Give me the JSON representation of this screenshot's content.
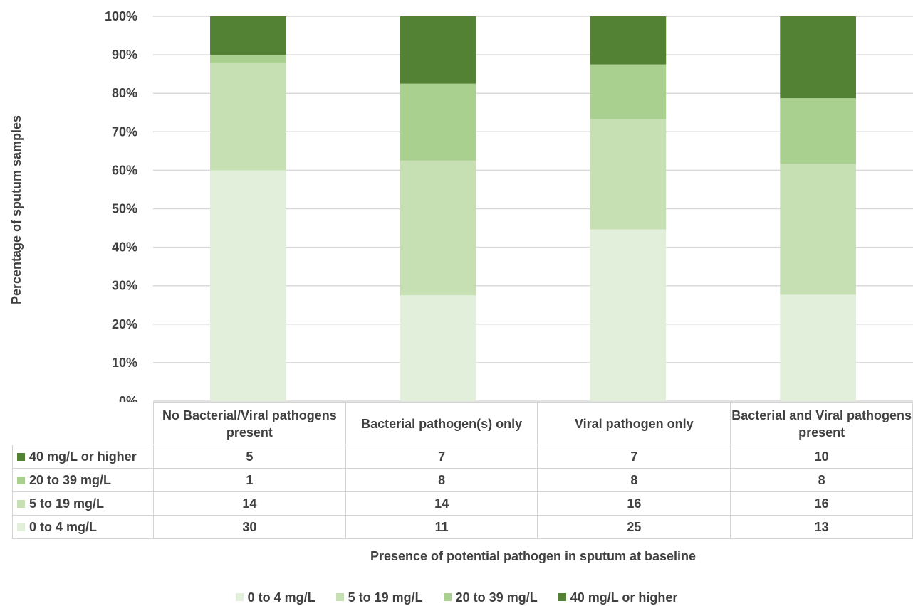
{
  "chart_data": {
    "type": "bar",
    "stacked": "percent",
    "ylabel": "Percentage of sputum samples",
    "xlabel": "Presence of potential pathogen in sputum at baseline",
    "ylim": [
      0,
      100
    ],
    "yticks": [
      "0%",
      "10%",
      "20%",
      "30%",
      "40%",
      "50%",
      "60%",
      "70%",
      "80%",
      "90%",
      "100%"
    ],
    "categories": [
      "No Bacterial/Viral pathogens present",
      "Bacterial pathogen(s) only",
      "Viral pathogen only",
      "Bacterial and Viral pathogens present"
    ],
    "series": [
      {
        "name": "0 to 4 mg/L",
        "color": "#e2efda",
        "values": [
          30,
          11,
          25,
          13
        ]
      },
      {
        "name": "5 to 19 mg/L",
        "color": "#c6e0b4",
        "values": [
          14,
          14,
          16,
          16
        ]
      },
      {
        "name": "20 to 39 mg/L",
        "color": "#a9d08e",
        "values": [
          1,
          8,
          8,
          8
        ]
      },
      {
        "name": "40 mg/L or higher",
        "color": "#548235",
        "values": [
          5,
          7,
          7,
          10
        ]
      }
    ],
    "grid": true,
    "legend_position": "bottom",
    "data_table": true
  }
}
